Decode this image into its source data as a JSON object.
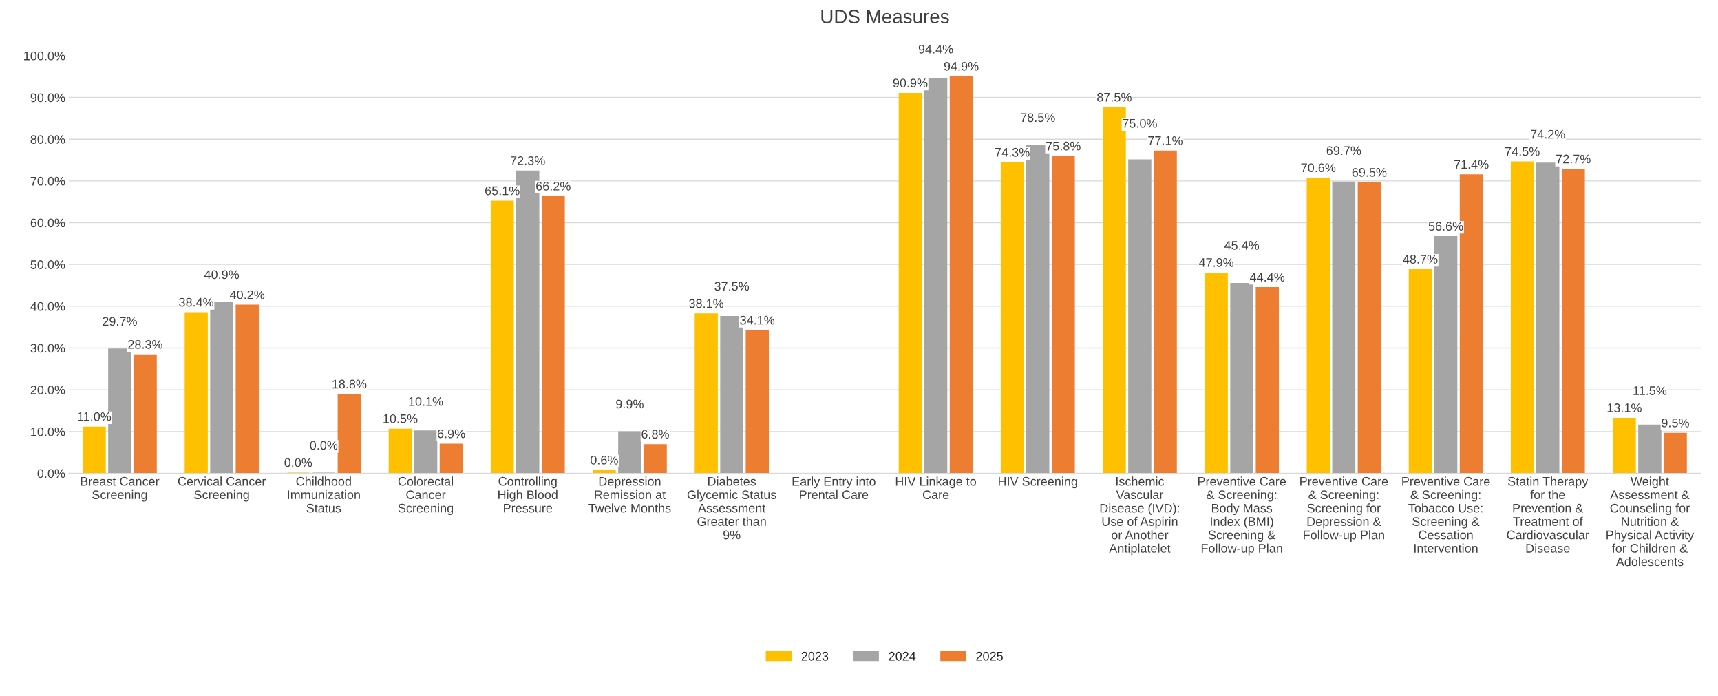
{
  "chart_data": {
    "type": "bar",
    "title": "UDS Measures",
    "categories": [
      "Breast Cancer\nScreening",
      "Cervical Cancer\nScreening",
      "Childhood\nImmunization\nStatus",
      "Colorectal\nCancer\nScreening",
      "Controlling\nHigh Blood\nPressure",
      "Depression\nRemission at\nTwelve Months",
      "Diabetes\nGlycemic Status\nAssessment\nGreater than\n9%",
      "Early Entry into\nPrental Care",
      "HIV Linkage to\nCare",
      "HIV Screening",
      "Ischemic\nVascular\nDisease (IVD):\nUse of Aspirin\nor Another\nAntiplatelet",
      "Preventive Care\n& Screening:\nBody Mass\nIndex (BMI)\nScreening &\nFollow-up Plan",
      "Preventive Care\n& Screening:\nScreening for\nDepression &\nFollow-up Plan",
      "Preventive Care\n& Screening:\nTobacco Use:\nScreening &\nCessation\nIntervention",
      "Statin Therapy\nfor the\nPrevention &\nTreatment of\nCardiovascular\nDisease",
      "Weight\nAssessment &\nCounseling for\nNutrition &\nPhysical Activity\nfor Children &\nAdolescents"
    ],
    "series": [
      {
        "name": "2023",
        "color": "#ffc000",
        "values": [
          11.0,
          38.4,
          0.0,
          10.5,
          65.1,
          0.6,
          38.1,
          null,
          90.9,
          74.3,
          87.5,
          47.9,
          70.6,
          48.7,
          74.5,
          13.1
        ],
        "value_labels": [
          "11.0%",
          "38.4%",
          "0.0%",
          "10.5%",
          "65.1%",
          "0.6%",
          "38.1%",
          null,
          "90.9%",
          "74.3%",
          "87.5%",
          "47.9%",
          "70.6%",
          "48.7%",
          "74.5%",
          "13.1%"
        ]
      },
      {
        "name": "2024",
        "color": "#a5a5a5",
        "values": [
          29.7,
          40.9,
          0.0,
          10.1,
          72.3,
          9.9,
          37.5,
          null,
          94.4,
          78.5,
          75.0,
          45.4,
          69.7,
          56.6,
          74.2,
          11.5
        ],
        "value_labels": [
          "29.7%",
          "40.9%",
          "0.0%",
          "10.1%",
          "72.3%",
          "9.9%",
          "37.5%",
          null,
          "94.4%",
          "78.5%",
          "75.0%",
          "45.4%",
          "69.7%",
          "56.6%",
          "74.2%",
          "11.5%"
        ]
      },
      {
        "name": "2025",
        "color": "#ed7d31",
        "values": [
          28.3,
          40.2,
          18.8,
          6.9,
          66.2,
          6.8,
          34.1,
          null,
          94.9,
          75.8,
          77.1,
          44.4,
          69.5,
          71.4,
          72.7,
          9.5
        ],
        "value_labels": [
          "28.3%",
          "40.2%",
          "18.8%",
          "6.9%",
          "66.2%",
          "6.8%",
          "34.1%",
          null,
          "94.9%",
          "75.8%",
          "77.1%",
          "44.4%",
          "69.5%",
          "71.4%",
          "72.7%",
          "9.5%"
        ]
      }
    ],
    "ylim": [
      0,
      100
    ],
    "yticks": [
      {
        "value": 0,
        "label": "0.0%"
      },
      {
        "value": 10,
        "label": "10.0%"
      },
      {
        "value": 20,
        "label": "20.0%"
      },
      {
        "value": 30,
        "label": "30.0%"
      },
      {
        "value": 40,
        "label": "40.0%"
      },
      {
        "value": 50,
        "label": "50.0%"
      },
      {
        "value": 60,
        "label": "60.0%"
      },
      {
        "value": 70,
        "label": "70.0%"
      },
      {
        "value": 80,
        "label": "80.0%"
      },
      {
        "value": 90,
        "label": "90.0%"
      },
      {
        "value": 100,
        "label": "100.0%"
      }
    ],
    "grid": "y",
    "legend": "bottom"
  }
}
